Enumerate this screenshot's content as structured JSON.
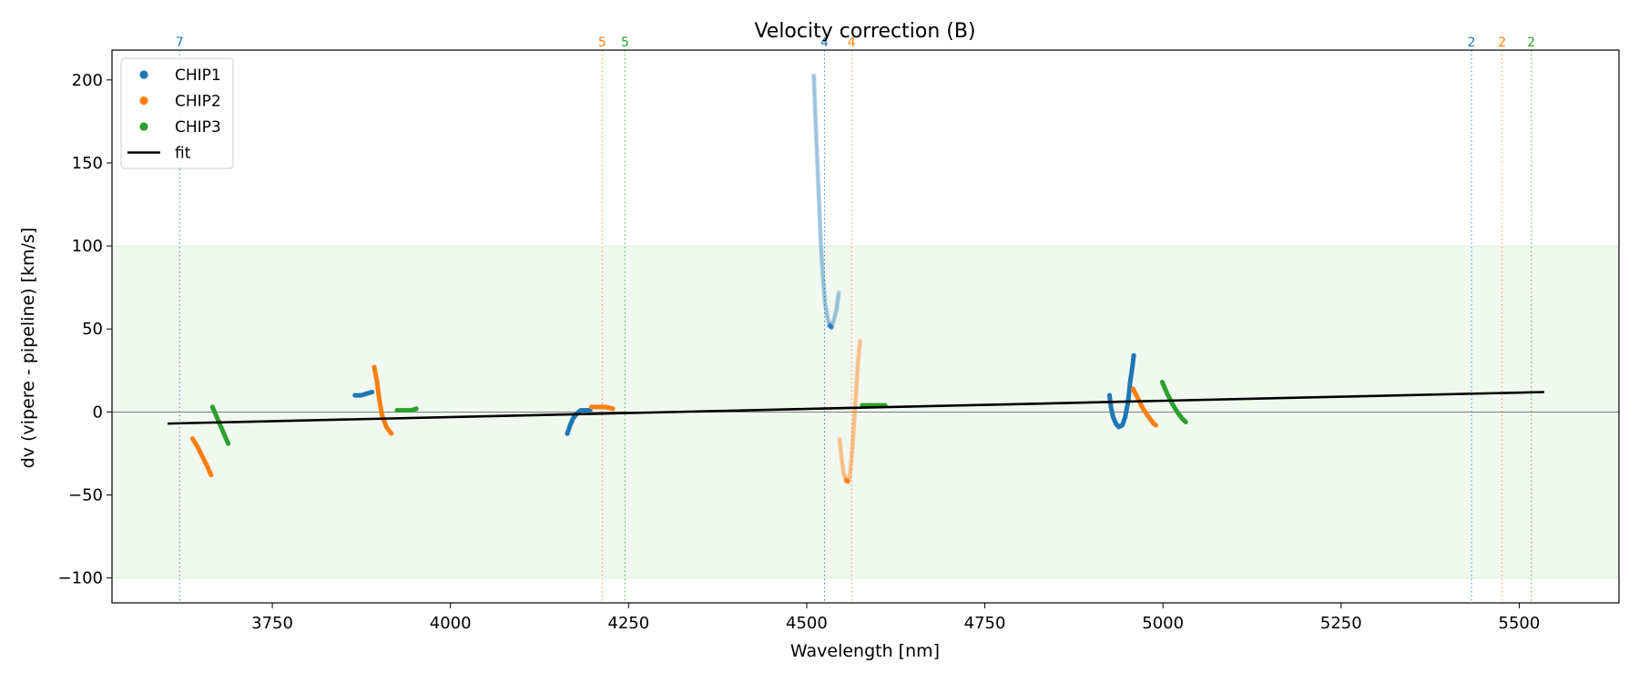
{
  "chart_data": {
    "type": "scatter",
    "title": "Velocity correction (B)",
    "xlabel": "Wavelength [nm]",
    "ylabel": "dv (vipere - pipeline) [km/s]",
    "xlim": [
      3525,
      5640
    ],
    "ylim": [
      -115,
      218
    ],
    "xticks": [
      3750,
      4000,
      4250,
      4500,
      4750,
      5000,
      5250,
      5500
    ],
    "yticks": [
      -100,
      -50,
      0,
      50,
      100,
      150,
      200
    ],
    "grid": false,
    "legend_position": "top-left",
    "band": {
      "y0": -100,
      "y1": 100,
      "color": "#2ca02c"
    },
    "zero_line": 0,
    "colors": {
      "CHIP1": "#1f77b4",
      "CHIP2": "#ff7f0e",
      "CHIP3": "#2ca02c",
      "fit": "#000000"
    },
    "legend": [
      {
        "label": "CHIP1",
        "kind": "dot",
        "color": "#1f77b4"
      },
      {
        "label": "CHIP2",
        "kind": "dot",
        "color": "#ff7f0e"
      },
      {
        "label": "CHIP3",
        "kind": "dot",
        "color": "#2ca02c"
      },
      {
        "label": "fit",
        "kind": "line",
        "color": "#000000"
      }
    ],
    "markers": [
      {
        "x": 3620,
        "label": "7",
        "color": "#1f77b4"
      },
      {
        "x": 4213,
        "label": "5",
        "color": "#ff7f0e"
      },
      {
        "x": 4245,
        "label": "5",
        "color": "#2ca02c"
      },
      {
        "x": 4525,
        "label": "4",
        "color": "#1f77b4"
      },
      {
        "x": 4563,
        "label": "4",
        "color": "#ff7f0e"
      },
      {
        "x": 5433,
        "label": "2",
        "color": "#1f77b4"
      },
      {
        "x": 5476,
        "label": "2",
        "color": "#ff7f0e"
      },
      {
        "x": 5517,
        "label": "2",
        "color": "#2ca02c"
      }
    ],
    "fit": {
      "x": [
        3603,
        5535
      ],
      "y": [
        -7,
        12
      ]
    },
    "series": [
      {
        "chip": "CHIP2",
        "opacity": 1,
        "points": [
          [
            3638,
            -16
          ],
          [
            3645,
            -21
          ],
          [
            3652,
            -27
          ],
          [
            3659,
            -33
          ],
          [
            3664,
            -38
          ]
        ]
      },
      {
        "chip": "CHIP3",
        "opacity": 1,
        "points": [
          [
            3666,
            3
          ],
          [
            3672,
            -3
          ],
          [
            3678,
            -9
          ],
          [
            3684,
            -15
          ],
          [
            3688,
            -19
          ]
        ]
      },
      {
        "chip": "CHIP1",
        "opacity": 1,
        "points": [
          [
            3866,
            10
          ],
          [
            3874,
            10
          ],
          [
            3882,
            11
          ],
          [
            3890,
            12
          ]
        ]
      },
      {
        "chip": "CHIP2",
        "opacity": 1,
        "points": [
          [
            3893,
            27
          ],
          [
            3897,
            18
          ],
          [
            3900,
            8
          ],
          [
            3904,
            -2
          ],
          [
            3910,
            -9
          ],
          [
            3917,
            -13
          ]
        ]
      },
      {
        "chip": "CHIP3",
        "opacity": 1,
        "points": [
          [
            3925,
            1
          ],
          [
            3935,
            1
          ],
          [
            3945,
            1
          ],
          [
            3952,
            2
          ]
        ]
      },
      {
        "chip": "CHIP1",
        "opacity": 1,
        "points": [
          [
            4164,
            -13
          ],
          [
            4168,
            -8
          ],
          [
            4172,
            -4
          ],
          [
            4177,
            -1
          ],
          [
            4183,
            1
          ],
          [
            4190,
            1
          ],
          [
            4196,
            1
          ]
        ]
      },
      {
        "chip": "CHIP2",
        "opacity": 1,
        "points": [
          [
            4198,
            3
          ],
          [
            4208,
            3
          ],
          [
            4218,
            3
          ],
          [
            4228,
            2
          ]
        ]
      },
      {
        "chip": "CHIP1",
        "opacity": 0.22,
        "points": [
          [
            4510,
            203
          ],
          [
            4512,
            180
          ],
          [
            4514,
            160
          ],
          [
            4516,
            140
          ],
          [
            4518,
            120
          ],
          [
            4520,
            100
          ],
          [
            4523,
            80
          ],
          [
            4526,
            65
          ],
          [
            4530,
            55
          ],
          [
            4534,
            51
          ],
          [
            4538,
            55
          ],
          [
            4542,
            62
          ],
          [
            4545,
            72
          ]
        ]
      },
      {
        "chip": "CHIP1",
        "opacity": 0.65,
        "points": [
          [
            4532,
            52
          ],
          [
            4535,
            51
          ]
        ]
      },
      {
        "chip": "CHIP2",
        "opacity": 0.25,
        "points": [
          [
            4546,
            -16
          ],
          [
            4549,
            -28
          ],
          [
            4552,
            -37
          ],
          [
            4556,
            -42
          ],
          [
            4560,
            -40
          ],
          [
            4563,
            -28
          ],
          [
            4566,
            -10
          ],
          [
            4569,
            10
          ],
          [
            4572,
            30
          ],
          [
            4575,
            43
          ]
        ]
      },
      {
        "chip": "CHIP2",
        "opacity": 0.7,
        "points": [
          [
            4555,
            -41
          ],
          [
            4558,
            -42
          ]
        ]
      },
      {
        "chip": "CHIP3",
        "opacity": 1,
        "points": [
          [
            4578,
            4
          ],
          [
            4588,
            4
          ],
          [
            4598,
            4
          ],
          [
            4610,
            4
          ]
        ]
      },
      {
        "chip": "CHIP1",
        "opacity": 1,
        "points": [
          [
            4925,
            10
          ],
          [
            4927,
            3
          ],
          [
            4930,
            -3
          ],
          [
            4934,
            -7
          ],
          [
            4938,
            -9
          ],
          [
            4943,
            -8
          ],
          [
            4947,
            -3
          ],
          [
            4951,
            6
          ],
          [
            4954,
            18
          ],
          [
            4957,
            27
          ],
          [
            4959,
            34
          ]
        ]
      },
      {
        "chip": "CHIP2",
        "opacity": 1,
        "points": [
          [
            4958,
            14
          ],
          [
            4965,
            8
          ],
          [
            4972,
            2
          ],
          [
            4980,
            -3
          ],
          [
            4987,
            -7
          ],
          [
            4990,
            -8
          ]
        ]
      },
      {
        "chip": "CHIP3",
        "opacity": 1,
        "points": [
          [
            4999,
            18
          ],
          [
            5006,
            11
          ],
          [
            5013,
            5
          ],
          [
            5020,
            0
          ],
          [
            5027,
            -4
          ],
          [
            5032,
            -6
          ]
        ]
      }
    ]
  }
}
